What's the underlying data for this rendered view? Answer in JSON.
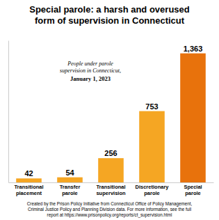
{
  "chart_data": {
    "type": "bar",
    "title": "Special parole: a harsh and overused\nform of supervision in Connecticut",
    "categories": [
      "Transitional\nplacement",
      "Transfer\nparole",
      "Transitional\nsupervision",
      "Discretionary\nparole",
      "Special\nparole"
    ],
    "values": [
      42,
      54,
      256,
      753,
      1363
    ],
    "value_labels": [
      "42",
      "54",
      "256",
      "753",
      "1,363"
    ],
    "colors": [
      "#F5A623",
      "#F5A623",
      "#F5A623",
      "#F5A623",
      "#E8720C"
    ],
    "ylim": [
      0,
      1500
    ],
    "data_labels": true,
    "tick_labels": "x",
    "grid": false,
    "annotations": [
      "People under parole\nsupervision in Connecticut,",
      "January 1, 2023"
    ],
    "footer": "Created by the Prison Policy Initiative from Connecticut Office of Policy Management,\nCriminal Justice Policy and Planning Division data. For more information, see the full\nreport at https://www.prisonpolicy.org/reports/ct_supervision.html"
  }
}
